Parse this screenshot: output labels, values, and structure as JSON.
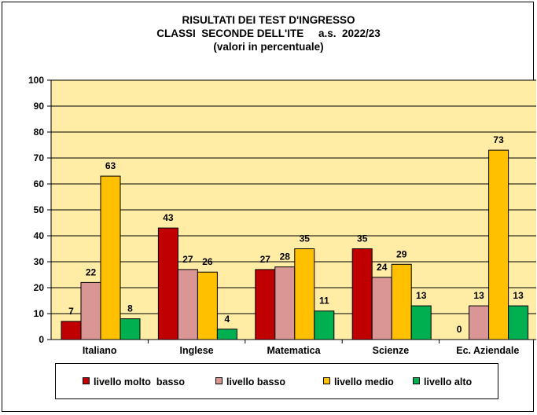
{
  "title": [
    "RISULTATI DEI TEST D'INGRESSO",
    "CLASSI  SECONDE DELL'ITE     a.s.  2022/23",
    "(valori in percentuale)"
  ],
  "colors": {
    "plot_bg": "#FFEDA6",
    "molto_basso": "#C00000",
    "basso": "#D99694",
    "medio": "#FFC000",
    "alto": "#00B050"
  },
  "chart_data": {
    "type": "bar",
    "categories": [
      "Italiano",
      "Inglese",
      "Matematica",
      "Scienze",
      "Ec. Aziendale"
    ],
    "series": [
      {
        "name": "livello molto  basso",
        "color": "#C00000",
        "values": [
          7,
          43,
          27,
          35,
          0
        ],
        "labels": [
          "7",
          "43",
          "27",
          "35",
          "0"
        ]
      },
      {
        "name": "livello basso",
        "color": "#D99694",
        "values": [
          22,
          27,
          28,
          24,
          13
        ],
        "labels": [
          "22",
          "27",
          "28",
          "24",
          "13"
        ]
      },
      {
        "name": "livello medio",
        "color": "#FFC000",
        "values": [
          63,
          26,
          35,
          29,
          73
        ],
        "labels": [
          "63",
          "26",
          "35",
          "29",
          "73"
        ]
      },
      {
        "name": "livello alto",
        "color": "#00B050",
        "values": [
          8,
          4,
          11,
          13,
          13
        ],
        "labels": [
          "8",
          "4",
          "11",
          "13",
          "13"
        ]
      }
    ],
    "ylim": [
      0,
      100
    ],
    "yticks": [
      0,
      10,
      20,
      30,
      40,
      50,
      60,
      70,
      80,
      90,
      100
    ],
    "ytick_labels": [
      "0",
      "10",
      "20",
      "30",
      "40",
      "50",
      "60",
      "70",
      "80",
      "90",
      "100"
    ],
    "grid": true,
    "legend_position": "bottom"
  }
}
